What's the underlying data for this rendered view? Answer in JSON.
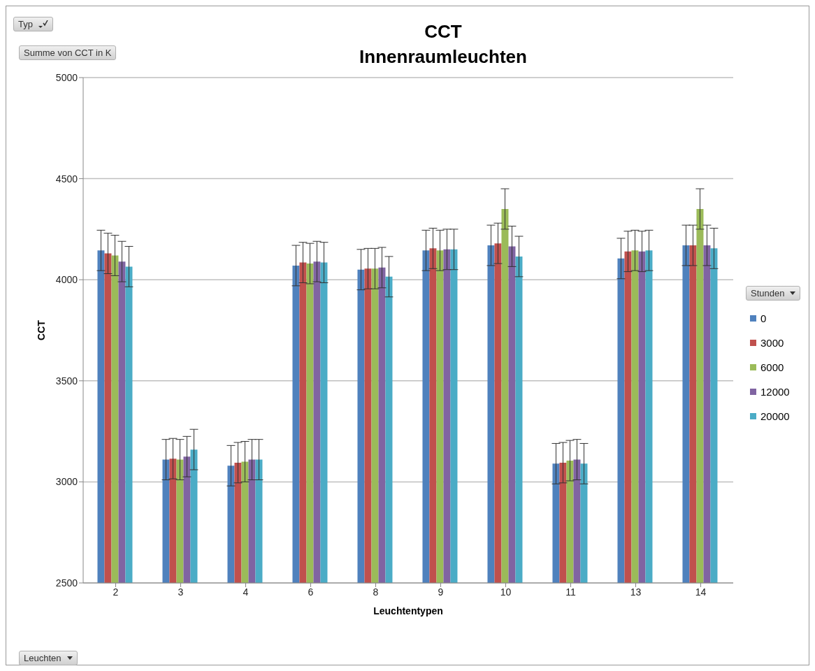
{
  "chart_data": {
    "type": "bar",
    "title": "CCT",
    "subtitle": "Innenraumleuchten",
    "xlabel": "Leuchtentypen",
    "ylabel": "CCT",
    "legend_title": "Stunden",
    "annotations": [
      "Typ",
      "Summe von CCT in K",
      "Leuchten"
    ],
    "categories": [
      "2",
      "3",
      "4",
      "6",
      "8",
      "9",
      "10",
      "11",
      "13",
      "14"
    ],
    "series": [
      {
        "name": "0",
        "color": "#4f81bd",
        "values": [
          4145,
          3110,
          3080,
          4070,
          4050,
          4145,
          4170,
          3090,
          4105,
          4170
        ],
        "errors": [
          100,
          100,
          100,
          100,
          100,
          100,
          100,
          100,
          100,
          100
        ]
      },
      {
        "name": "3000",
        "color": "#c0504d",
        "values": [
          4130,
          3115,
          3095,
          4085,
          4055,
          4155,
          4180,
          3095,
          4140,
          4170
        ],
        "errors": [
          100,
          100,
          100,
          100,
          100,
          100,
          100,
          100,
          100,
          100
        ]
      },
      {
        "name": "6000",
        "color": "#9bbb59",
        "values": [
          4120,
          3110,
          3100,
          4080,
          4055,
          4145,
          4350,
          3105,
          4145,
          4350
        ],
        "errors": [
          100,
          100,
          100,
          100,
          100,
          100,
          100,
          100,
          100,
          100
        ]
      },
      {
        "name": "12000",
        "color": "#8064a2",
        "values": [
          4090,
          3125,
          3110,
          4090,
          4060,
          4150,
          4165,
          3110,
          4140,
          4170
        ],
        "errors": [
          100,
          100,
          100,
          100,
          100,
          100,
          100,
          100,
          100,
          100
        ]
      },
      {
        "name": "20000",
        "color": "#4bacc6",
        "values": [
          4065,
          3160,
          3110,
          4085,
          4015,
          4150,
          4115,
          3090,
          4145,
          4155
        ],
        "errors": [
          100,
          100,
          100,
          100,
          100,
          100,
          100,
          100,
          100,
          100
        ]
      }
    ],
    "ylim": [
      2500,
      5000
    ],
    "yticks": [
      2500,
      3000,
      3500,
      4000,
      4500,
      5000
    ],
    "grid": "y",
    "legend": "right"
  }
}
